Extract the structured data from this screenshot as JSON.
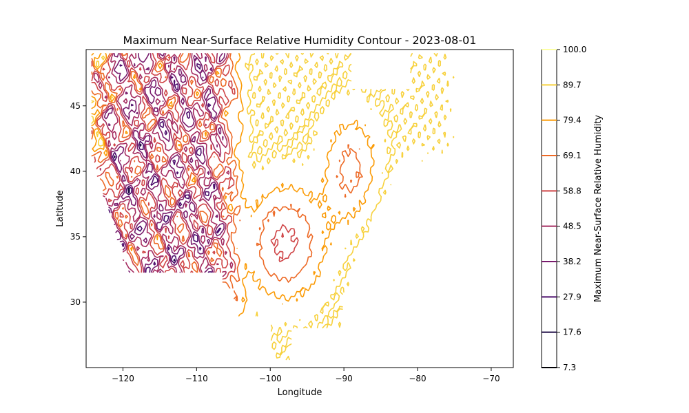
{
  "chart_data": {
    "type": "contour",
    "title": "Maximum Near-Surface Relative Humidity Contour - 2023-08-01",
    "xlabel": "Longitude",
    "ylabel": "Latitude",
    "xlim": [
      -125,
      -67
    ],
    "ylim": [
      25,
      49.3
    ],
    "x_ticks": [
      -120,
      -110,
      -100,
      -90,
      -80,
      -70
    ],
    "y_ticks": [
      30,
      35,
      40,
      45
    ],
    "grid": false,
    "colorbar": {
      "label": "Maximum Near-Surface Relative Humidity",
      "levels": [
        7.3,
        17.6,
        27.9,
        38.2,
        48.5,
        58.8,
        69.1,
        79.4,
        89.7,
        100.0
      ],
      "colors": [
        "#000004",
        "#1d0c44",
        "#4a0c6b",
        "#781c6d",
        "#a52c60",
        "#cf4446",
        "#ed6925",
        "#fb9b06",
        "#f7d13d",
        "#fcffa4"
      ],
      "colormap": "inferno"
    }
  }
}
